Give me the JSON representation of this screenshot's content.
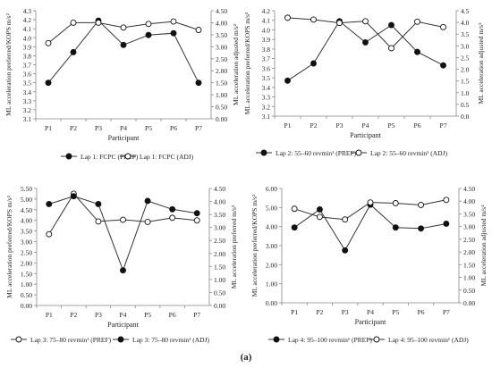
{
  "chart_data": [
    {
      "type": "line",
      "categories": [
        "P1",
        "P2",
        "P3",
        "P4",
        "P5",
        "P6",
        "P7"
      ],
      "xlabel": "Participant",
      "ylabel_left": "ML acceleration preferred/KOPS m/s²",
      "ylabel_right": "ML acceleration adjusted m/s²",
      "left_axis": {
        "min": 3.1,
        "max": 4.3,
        "step": 0.1,
        "decimals": 1
      },
      "right_axis": {
        "min": 0.0,
        "max": 4.5,
        "step": 0.5,
        "decimals": 2
      },
      "legend_position": "bottom",
      "series": [
        {
          "name": "Lap 1: FCPC (PREF)",
          "axis": "left",
          "marker": "filled",
          "values": [
            3.5,
            3.84,
            4.19,
            3.92,
            4.03,
            4.05,
            3.5
          ]
        },
        {
          "name": "Lap 1: FCPC (ADJ)",
          "axis": "right",
          "marker": "open",
          "values": [
            3.15,
            4.0,
            4.0,
            3.8,
            3.95,
            4.05,
            3.7
          ]
        }
      ]
    },
    {
      "type": "line",
      "categories": [
        "P1",
        "P2",
        "P3",
        "P4",
        "P5",
        "P6",
        "P7"
      ],
      "xlabel": "Participant",
      "ylabel_left": "ML acceleration preferred/KOPS m/s²",
      "ylabel_right": "ML acceleration adjusted m/s²",
      "left_axis": {
        "min": 3.1,
        "max": 4.2,
        "step": 0.1,
        "decimals": 1
      },
      "right_axis": {
        "min": 0,
        "max": 4.5,
        "step": 0.5,
        "decimals": 1
      },
      "legend_position": "bottom",
      "series": [
        {
          "name": "Lap 2: 55–60 revmin¹ (PREF)",
          "axis": "left",
          "marker": "filled",
          "values": [
            3.47,
            3.65,
            4.09,
            3.87,
            4.05,
            3.77,
            3.63
          ]
        },
        {
          "name": "Lap 2: 55–60 revmin¹ (ADJ)",
          "axis": "right",
          "marker": "open",
          "values": [
            4.2,
            4.12,
            3.98,
            4.05,
            2.9,
            4.03,
            3.8
          ]
        }
      ]
    },
    {
      "type": "line",
      "categories": [
        "P1",
        "P2",
        "P3",
        "P4",
        "P5",
        "P6",
        "P7"
      ],
      "xlabel": "Participant",
      "ylabel_left": "ML acceleration preferred/KOPS m/s²",
      "ylabel_right": "ML acceleration preferred m/s²",
      "left_axis": {
        "min": 0,
        "max": 5.5,
        "step": 0.5,
        "decimals": 2
      },
      "right_axis": {
        "min": 0,
        "max": 4.5,
        "step": 0.5,
        "decimals": 2
      },
      "legend_position": "bottom",
      "series": [
        {
          "name": "Lap 3: 75–80 revmin¹ (PREF)",
          "axis": "left",
          "marker": "open",
          "values": [
            3.35,
            5.25,
            3.95,
            4.03,
            3.93,
            4.12,
            4.0
          ]
        },
        {
          "name": "Lap 3: 75–80 revmin¹ (ADJ)",
          "axis": "right",
          "marker": "filled",
          "values": [
            3.9,
            4.2,
            3.9,
            1.35,
            4.02,
            3.7,
            3.55
          ]
        }
      ]
    },
    {
      "type": "line",
      "categories": [
        "P1",
        "P2",
        "P3",
        "P4",
        "P5",
        "P6",
        "P7"
      ],
      "xlabel": "Participant",
      "ylabel_left": "ML acceleration preferred/KOPS m/s²",
      "ylabel_right": "ML acceleration adjusted m/s²",
      "left_axis": {
        "min": 0,
        "max": 6.0,
        "step": 1.0,
        "decimals": 2
      },
      "right_axis": {
        "min": 0,
        "max": 4.5,
        "step": 0.5,
        "decimals": 2
      },
      "legend_position": "bottom",
      "series": [
        {
          "name": "Lap 4: 95–100 revmin¹ (PREF)",
          "axis": "left",
          "marker": "filled",
          "values": [
            3.95,
            4.9,
            2.75,
            5.15,
            3.95,
            3.9,
            4.15
          ]
        },
        {
          "name": "Lap 4: 95–100 revmin¹ (ADJ)",
          "axis": "right",
          "marker": "open",
          "values": [
            3.7,
            3.38,
            3.28,
            3.95,
            3.92,
            3.85,
            4.05
          ]
        }
      ]
    }
  ],
  "figure_caption": "(a)"
}
